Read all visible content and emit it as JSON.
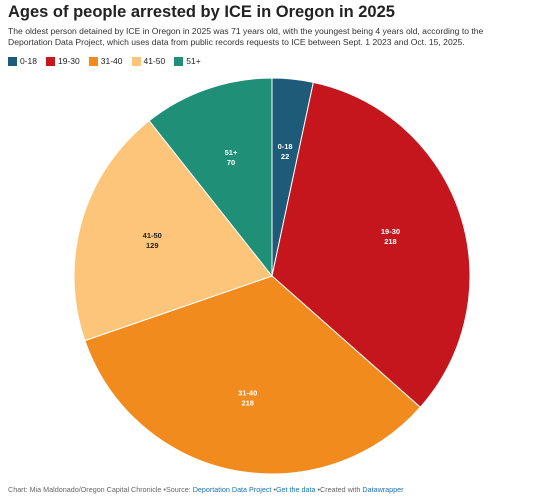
{
  "chart_data": {
    "type": "pie",
    "title": "Ages of people arrested by ICE in Oregon in 2025",
    "subtitle": "The oldest person detained by ICE in Oregon in 2025 was 71 years old, with the youngest being 4 years old, according to the Deportation Data Project, which uses data from public records requests to ICE between Sept. 1 2023 and Oct. 15, 2025.",
    "categories": [
      "0-18",
      "19-30",
      "31-40",
      "41-50",
      "51+"
    ],
    "values": [
      22,
      218,
      218,
      129,
      70
    ],
    "colors": [
      "#1d5b79",
      "#c5161d",
      "#f28b1e",
      "#fdc57a",
      "#1f9077"
    ],
    "label_colors": [
      "#ffffff",
      "#ffffff",
      "#ffffff",
      "#222222",
      "#ffffff"
    ],
    "legend": "top-left"
  },
  "footer": {
    "credit": "Chart: Mia Maldonado/Oregon Capital Chronicle",
    "source_label": "Source:",
    "source": "Deportation Data Project",
    "get_data": "Get the data",
    "created_with": "Created with",
    "tool": "Datawrapper"
  }
}
